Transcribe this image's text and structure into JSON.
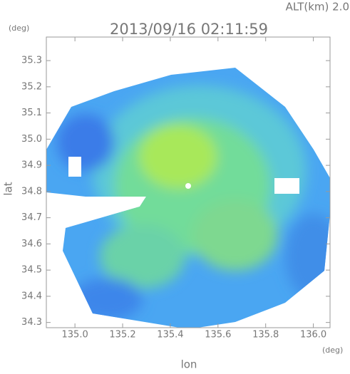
{
  "chart_data": {
    "type": "raster",
    "title": "2013/09/16 02:11:59",
    "subtitle": "ALT(km) 2.0",
    "y_unit": "(deg)",
    "x_unit": "(deg)",
    "x_label": "lon",
    "y_label": "lat",
    "xlim": [
      134.88,
      136.07
    ],
    "ylim": [
      34.28,
      35.39
    ],
    "xticks": [
      {
        "value": 135.0,
        "label": "135.0"
      },
      {
        "value": 135.2,
        "label": "135.2"
      },
      {
        "value": 135.4,
        "label": "135.4"
      },
      {
        "value": 135.6,
        "label": "135.6"
      },
      {
        "value": 135.8,
        "label": "135.8"
      },
      {
        "value": 136.0,
        "label": "136.0"
      }
    ],
    "yticks": [
      {
        "value": 34.3,
        "label": "34.3"
      },
      {
        "value": 34.4,
        "label": "34.4"
      },
      {
        "value": 34.5,
        "label": "34.5"
      },
      {
        "value": 34.6,
        "label": "34.6"
      },
      {
        "value": 34.7,
        "label": "34.7"
      },
      {
        "value": 34.8,
        "label": "34.8"
      },
      {
        "value": 34.9,
        "label": "34.9"
      },
      {
        "value": 35.0,
        "label": "35.0"
      },
      {
        "value": 35.1,
        "label": "35.1"
      },
      {
        "value": 35.2,
        "label": "35.2"
      },
      {
        "value": 35.3,
        "label": "35.3"
      }
    ]
  }
}
